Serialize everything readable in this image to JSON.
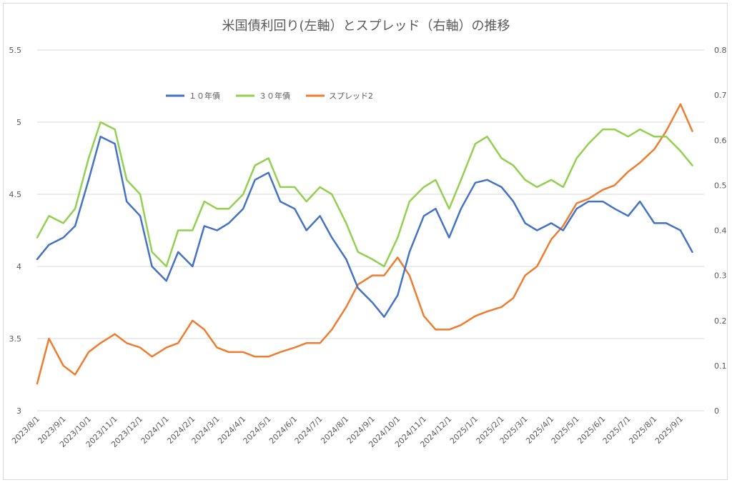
{
  "chart_data": {
    "type": "line",
    "title": "米国債利回り(左軸）とスプレッド（右軸）の推移",
    "y_left": {
      "ticks": [
        "5.5",
        "5",
        "4.5",
        "4",
        "3.5",
        "3"
      ],
      "range": [
        3,
        5.5
      ]
    },
    "y_right": {
      "ticks": [
        "0.8",
        "0.7",
        "0.6",
        "0.5",
        "0.4",
        "0.3",
        "0.2",
        "0.1",
        "0"
      ],
      "range": [
        0,
        0.8
      ]
    },
    "x_tick_labels": [
      "2023/8/1",
      "2023/9/1",
      "2023/10/1",
      "2023/11/1",
      "2023/12/1",
      "2024/1/1",
      "2024/2/1",
      "2024/3/1",
      "2024/4/1",
      "2024/5/1",
      "2024/6/1",
      "2024/7/1",
      "2024/8/1",
      "2024/9/1",
      "2024/10/1",
      "2024/11/1",
      "2024/12/1",
      "2025/1/1",
      "2025/2/1",
      "2025/3/1",
      "2025/4/1",
      "2025/5/1",
      "2025/6/1",
      "2025/7/1",
      "2025/8/1",
      "2025/9/1"
    ],
    "grid": "horizontal",
    "legend": "top-left",
    "series": [
      {
        "name": "１０年債",
        "axis": "left",
        "color": "#4472c4",
        "x": [
          "2023/8/1",
          "2023/8/15",
          "2023/9/1",
          "2023/9/15",
          "2023/10/1",
          "2023/10/15",
          "2023/11/1",
          "2023/11/15",
          "2023/12/1",
          "2023/12/15",
          "2024/1/1",
          "2024/1/15",
          "2024/2/1",
          "2024/2/15",
          "2024/3/1",
          "2024/3/15",
          "2024/4/1",
          "2024/4/15",
          "2024/5/1",
          "2024/5/15",
          "2024/6/1",
          "2024/6/15",
          "2024/7/1",
          "2024/7/15",
          "2024/8/1",
          "2024/8/15",
          "2024/9/1",
          "2024/9/15",
          "2024/10/1",
          "2024/10/15",
          "2024/11/1",
          "2024/11/15",
          "2024/12/1",
          "2024/12/15",
          "2025/1/1",
          "2025/1/15",
          "2025/2/1",
          "2025/2/15",
          "2025/3/1",
          "2025/3/15",
          "2025/4/1",
          "2025/4/15",
          "2025/5/1",
          "2025/5/15",
          "2025/6/1",
          "2025/6/15",
          "2025/7/1",
          "2025/7/15",
          "2025/8/1",
          "2025/8/15",
          "2025/9/1",
          "2025/9/15"
        ],
        "values": [
          4.05,
          4.15,
          4.2,
          4.28,
          4.6,
          4.9,
          4.85,
          4.45,
          4.35,
          4.0,
          3.9,
          4.1,
          4.0,
          4.28,
          4.25,
          4.3,
          4.4,
          4.6,
          4.65,
          4.45,
          4.4,
          4.25,
          4.35,
          4.2,
          4.05,
          3.85,
          3.75,
          3.65,
          3.8,
          4.1,
          4.35,
          4.4,
          4.2,
          4.4,
          4.58,
          4.6,
          4.55,
          4.45,
          4.3,
          4.25,
          4.3,
          4.25,
          4.4,
          4.45,
          4.45,
          4.4,
          4.35,
          4.45,
          4.3,
          4.3,
          4.25,
          4.1
        ]
      },
      {
        "name": "３０年債",
        "axis": "left",
        "color": "#92d050",
        "x": [
          "2023/8/1",
          "2023/8/15",
          "2023/9/1",
          "2023/9/15",
          "2023/10/1",
          "2023/10/15",
          "2023/11/1",
          "2023/11/15",
          "2023/12/1",
          "2023/12/15",
          "2024/1/1",
          "2024/1/15",
          "2024/2/1",
          "2024/2/15",
          "2024/3/1",
          "2024/3/15",
          "2024/4/1",
          "2024/4/15",
          "2024/5/1",
          "2024/5/15",
          "2024/6/1",
          "2024/6/15",
          "2024/7/1",
          "2024/7/15",
          "2024/8/1",
          "2024/8/15",
          "2024/9/1",
          "2024/9/15",
          "2024/10/1",
          "2024/10/15",
          "2024/11/1",
          "2024/11/15",
          "2024/12/1",
          "2024/12/15",
          "2025/1/1",
          "2025/1/15",
          "2025/2/1",
          "2025/2/15",
          "2025/3/1",
          "2025/3/15",
          "2025/4/1",
          "2025/4/15",
          "2025/5/1",
          "2025/5/15",
          "2025/6/1",
          "2025/6/15",
          "2025/7/1",
          "2025/7/15",
          "2025/8/1",
          "2025/8/15",
          "2025/9/1",
          "2025/9/15"
        ],
        "values": [
          4.2,
          4.35,
          4.3,
          4.4,
          4.75,
          5.0,
          4.95,
          4.6,
          4.5,
          4.1,
          4.0,
          4.25,
          4.25,
          4.45,
          4.4,
          4.4,
          4.5,
          4.7,
          4.75,
          4.55,
          4.55,
          4.45,
          4.55,
          4.5,
          4.3,
          4.1,
          4.05,
          4.0,
          4.2,
          4.45,
          4.55,
          4.6,
          4.4,
          4.6,
          4.85,
          4.9,
          4.75,
          4.7,
          4.6,
          4.55,
          4.6,
          4.55,
          4.75,
          4.85,
          4.95,
          4.95,
          4.9,
          4.95,
          4.9,
          4.9,
          4.8,
          4.7
        ]
      },
      {
        "name": "スプレッド2",
        "axis": "right",
        "color": "#ed7d31",
        "x": [
          "2023/8/1",
          "2023/8/15",
          "2023/9/1",
          "2023/9/15",
          "2023/10/1",
          "2023/10/15",
          "2023/11/1",
          "2023/11/15",
          "2023/12/1",
          "2023/12/15",
          "2024/1/1",
          "2024/1/15",
          "2024/2/1",
          "2024/2/15",
          "2024/3/1",
          "2024/3/15",
          "2024/4/1",
          "2024/4/15",
          "2024/5/1",
          "2024/5/15",
          "2024/6/1",
          "2024/6/15",
          "2024/7/1",
          "2024/7/15",
          "2024/8/1",
          "2024/8/15",
          "2024/9/1",
          "2024/9/15",
          "2024/10/1",
          "2024/10/15",
          "2024/11/1",
          "2024/11/15",
          "2024/12/1",
          "2024/12/15",
          "2025/1/1",
          "2025/1/15",
          "2025/2/1",
          "2025/2/15",
          "2025/3/1",
          "2025/3/15",
          "2025/4/1",
          "2025/4/15",
          "2025/5/1",
          "2025/5/15",
          "2025/6/1",
          "2025/6/15",
          "2025/7/1",
          "2025/7/15",
          "2025/8/1",
          "2025/8/15",
          "2025/9/1",
          "2025/9/15"
        ],
        "values": [
          0.06,
          0.16,
          0.1,
          0.08,
          0.13,
          0.15,
          0.17,
          0.15,
          0.14,
          0.12,
          0.14,
          0.15,
          0.2,
          0.18,
          0.14,
          0.13,
          0.13,
          0.12,
          0.12,
          0.13,
          0.14,
          0.15,
          0.15,
          0.18,
          0.23,
          0.28,
          0.3,
          0.3,
          0.34,
          0.3,
          0.21,
          0.18,
          0.18,
          0.19,
          0.21,
          0.22,
          0.23,
          0.25,
          0.3,
          0.32,
          0.38,
          0.41,
          0.46,
          0.47,
          0.49,
          0.5,
          0.53,
          0.55,
          0.58,
          0.62,
          0.68,
          0.62
        ]
      }
    ]
  }
}
